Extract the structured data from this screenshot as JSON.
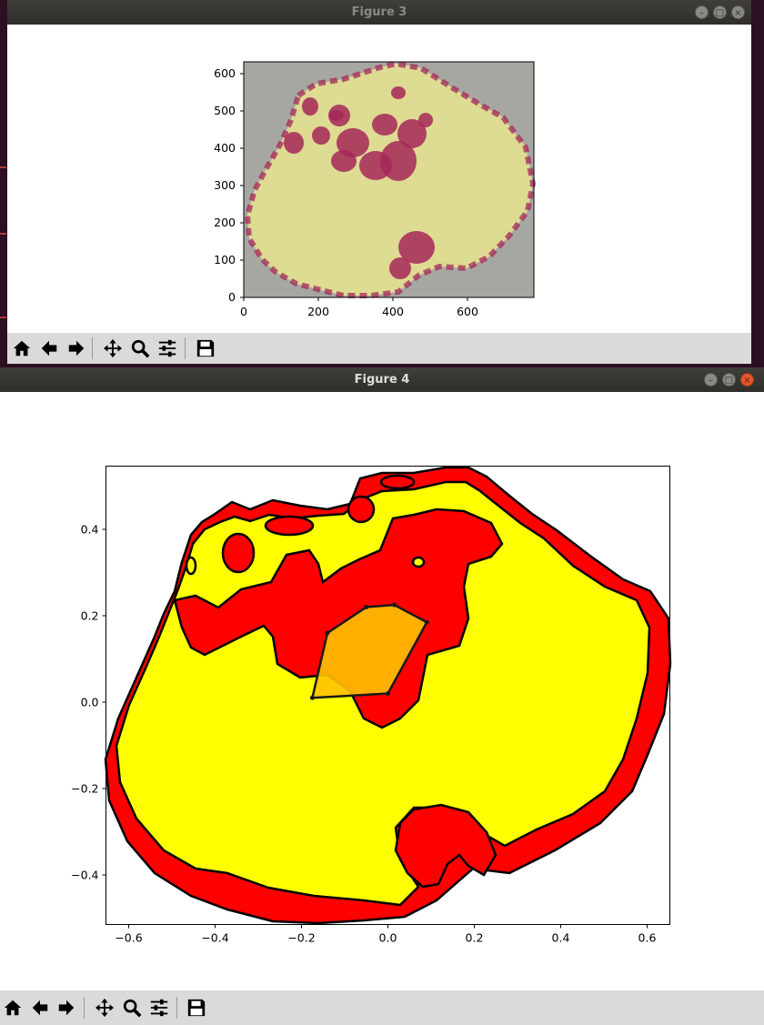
{
  "fig3": {
    "title": "Figure 3",
    "window_buttons": [
      "minimize",
      "maximize",
      "close"
    ],
    "chart_data": {
      "type": "image",
      "image_extent": {
        "x": [
          0,
          775
        ],
        "y": [
          0,
          630
        ]
      },
      "xticks": [
        "0",
        "200",
        "400",
        "600"
      ],
      "yticks": [
        "0",
        "100",
        "200",
        "300",
        "400",
        "500",
        "600"
      ],
      "image_colors": {
        "background": "#a7a7a1",
        "petal": "#dedb92",
        "spots": "#a62758"
      }
    }
  },
  "fig4": {
    "title": "Figure 4",
    "window_buttons": [
      "minimize",
      "maximize",
      "close"
    ],
    "chart_data": {
      "type": "contour-fill",
      "xlim": [
        -0.65,
        0.65
      ],
      "ylim": [
        -0.52,
        0.54
      ],
      "xticks": [
        "−0.6",
        "−0.4",
        "−0.2",
        "0.0",
        "0.2",
        "0.4",
        "0.6"
      ],
      "yticks": [
        "−0.4",
        "−0.2",
        "0.0",
        "0.2",
        "0.4"
      ],
      "polygon": {
        "x": [
          -0.175,
          -0.14,
          -0.05,
          0.015,
          0.09,
          0.0,
          -0.175
        ],
        "y": [
          0.01,
          0.16,
          0.22,
          0.225,
          0.185,
          0.02,
          0.01
        ],
        "fill": "#ffc200",
        "edge": "#1a1a1a"
      },
      "colors": {
        "petal": "#ffff00",
        "spots": "#ff0000",
        "outline": "#000000"
      }
    }
  },
  "toolbar_icons": [
    "home-icon",
    "back-icon",
    "forward-icon",
    "pan-icon",
    "zoom-icon",
    "configure-icon",
    "save-icon"
  ]
}
